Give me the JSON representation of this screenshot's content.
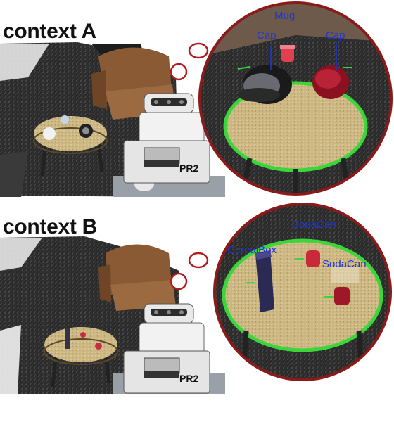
{
  "panels": [
    {
      "context_label": "context A",
      "robot_label": "PR2",
      "object_labels": [
        "Mug",
        "Cap",
        "Cap"
      ]
    },
    {
      "context_label": "context B",
      "robot_label": "PR2",
      "object_labels": [
        "SodaCan",
        "CerealBox",
        "SodaCan"
      ]
    }
  ],
  "colors": {
    "zoom_circle_border": "#8b1a1a",
    "table_ring": "#3ad63a",
    "object_label": "#1f36d6"
  }
}
